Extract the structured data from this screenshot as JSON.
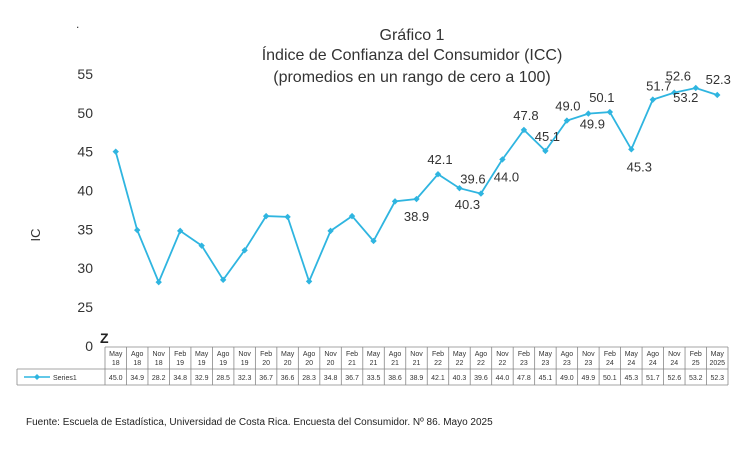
{
  "chart_data": {
    "type": "line",
    "title_lines": [
      "Gráfico 1",
      "Índice de Confianza del Consumidor (ICC)",
      "(promedios en un rango de cero a 100)"
    ],
    "ylabel": "IC",
    "ylim": [
      0,
      55
    ],
    "yticks": [
      "0",
      "25",
      "30",
      "35",
      "40",
      "45",
      "50",
      "55"
    ],
    "broken_axis_mark": "Z",
    "grid": false,
    "legend": "data-table",
    "categories": [
      [
        "May",
        "18"
      ],
      [
        "Ago",
        "18"
      ],
      [
        "Nov",
        "18"
      ],
      [
        "Feb",
        "19"
      ],
      [
        "May",
        "19"
      ],
      [
        "Ago",
        "19"
      ],
      [
        "Nov",
        "19"
      ],
      [
        "Feb",
        "20"
      ],
      [
        "May",
        "20"
      ],
      [
        "Ago",
        "20"
      ],
      [
        "Nov",
        "20"
      ],
      [
        "Feb",
        "21"
      ],
      [
        "May",
        "21"
      ],
      [
        "Ago",
        "21"
      ],
      [
        "Nov",
        "21"
      ],
      [
        "Feb",
        "22"
      ],
      [
        "May",
        "22"
      ],
      [
        "Ago",
        "22"
      ],
      [
        "Nov",
        "22"
      ],
      [
        "Feb",
        "23"
      ],
      [
        "May",
        "23"
      ],
      [
        "Ago",
        "23"
      ],
      [
        "Nov",
        "23"
      ],
      [
        "Feb",
        "24"
      ],
      [
        "May",
        "24"
      ],
      [
        "Ago",
        "24"
      ],
      [
        "Nov",
        "24"
      ],
      [
        "Feb",
        "25"
      ],
      [
        "May",
        "2025"
      ]
    ],
    "series": [
      {
        "name": "Series1",
        "color": "#2fb5e0",
        "values": [
          45.0,
          34.9,
          28.2,
          34.8,
          32.9,
          28.5,
          32.3,
          36.7,
          36.6,
          28.3,
          34.8,
          36.7,
          33.5,
          38.6,
          38.9,
          42.1,
          40.3,
          39.6,
          44.0,
          47.8,
          45.1,
          49.0,
          49.9,
          50.1,
          45.3,
          51.7,
          52.6,
          53.2,
          52.3
        ],
        "table_values": [
          "45.0",
          "34.9",
          "28.2",
          "34.8",
          "32.9",
          "28.5",
          "32.3",
          "36.7",
          "36.6",
          "28.3",
          "34.8",
          "36.7",
          "33.5",
          "38.6",
          "38.9",
          "42.1",
          "40.3",
          "39.6",
          "44.0",
          "47.8",
          "45.1",
          "49.0",
          "49.9",
          "50.1",
          "45.3",
          "51.7",
          "52.6",
          "53.2",
          "52.3"
        ]
      }
    ],
    "annotations": [
      {
        "index": 14,
        "text": "38.9"
      },
      {
        "index": 15,
        "text": "42.1"
      },
      {
        "index": 16,
        "text": "40.3"
      },
      {
        "index": 17,
        "text": "39.6"
      },
      {
        "index": 18,
        "text": "44.0"
      },
      {
        "index": 19,
        "text": "47.8"
      },
      {
        "index": 20,
        "text": "45.1"
      },
      {
        "index": 21,
        "text": "49.0"
      },
      {
        "index": 22,
        "text": "49.9"
      },
      {
        "index": 23,
        "text": "50.1"
      },
      {
        "index": 24,
        "text": "45.3"
      },
      {
        "index": 25,
        "text": "51.7"
      },
      {
        "index": 26,
        "text": "52.6"
      },
      {
        "index": 27,
        "text": "53.2"
      },
      {
        "index": 28,
        "text": "52.3"
      }
    ]
  },
  "source_note": "Fuente: Escuela de Estadística, Universidad de Costa Rica. Encuesta del Consumidor. Nº 86. Mayo 2025",
  "corner_mark": "."
}
